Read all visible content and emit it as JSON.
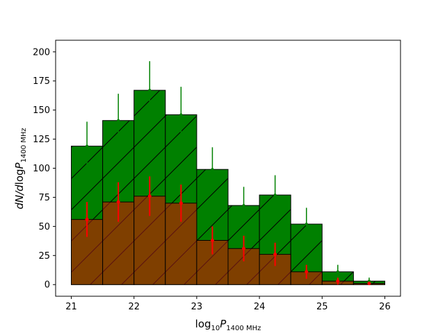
{
  "chart_data": {
    "type": "bar",
    "title": "",
    "xlabel": "log10P1400 MHz",
    "ylabel": "dN/dlogP1400 MHz",
    "xlabel_parts": {
      "base": "log",
      "base_sub": "10",
      "var": "P",
      "var_sub": "1400 MHz"
    },
    "ylabel_parts": {
      "prefix": "dN/d",
      "base": "log",
      "var": "P",
      "var_sub": "1400 MHz"
    },
    "xlim": [
      20.75,
      26.25
    ],
    "ylim": [
      -10,
      210
    ],
    "xticks": [
      21,
      22,
      23,
      24,
      25,
      26
    ],
    "xtick_labels": [
      "21",
      "22",
      "23",
      "24",
      "25",
      "26"
    ],
    "yticks": [
      0,
      25,
      50,
      75,
      100,
      125,
      150,
      175,
      200
    ],
    "ytick_labels": [
      "0",
      "25",
      "50",
      "75",
      "100",
      "125",
      "150",
      "175",
      "200"
    ],
    "grid": false,
    "bin_edges": [
      21.0,
      21.5,
      22.0,
      22.5,
      23.0,
      23.5,
      24.0,
      24.5,
      25.0,
      25.5,
      26.0
    ],
    "series": [
      {
        "color": "#008000",
        "hatch": "/",
        "values": [
          119,
          141,
          167,
          146,
          99,
          68,
          77,
          52,
          11,
          3
        ],
        "errors": [
          21,
          23,
          25,
          24,
          19,
          16,
          17,
          14,
          6,
          3
        ]
      },
      {
        "color": "#7f3f00",
        "hatch": "/",
        "hatch_color": "#5a1010",
        "values": [
          56,
          71,
          76,
          70,
          38,
          31,
          26,
          11,
          3,
          1
        ],
        "errors": [
          15,
          17,
          17,
          16,
          12,
          11,
          10,
          6,
          3,
          1.5
        ]
      }
    ],
    "errorbar_colors": [
      "#008000",
      "#ff0000"
    ]
  }
}
